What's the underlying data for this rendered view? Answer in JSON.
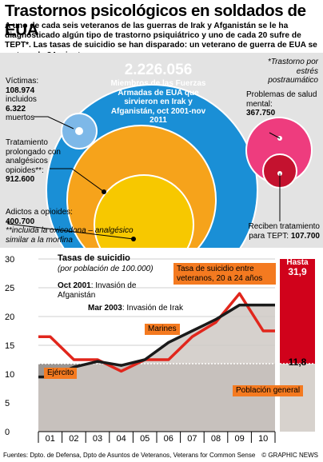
{
  "header": {
    "title": "Trastornos psicológicos en soldados de EUA",
    "subtitle": "A uno de cada seis veteranos de las guerras de Irak y Afganistán se le ha diagnosticado algún tipo de trastorno psiquiátrico y uno de cada 20 sufre de TEPT*. Las tasas de suicidio se han disparado: un veterano de guerra de EUA se mata cada 84 minutos"
  },
  "bubbles": {
    "total_value": "2.226.056",
    "total_desc": "Miembros de las Fuerzas Armadas de EUA que sirvieron en Irak y Afganistán, oct 2001-nov 2011",
    "footnote": "*Trastorno por estrés postraumático",
    "victims": {
      "label": "Víctimas:",
      "value": "108.974",
      "injured_label": "incluidos",
      "dead_value": "6.322",
      "dead_label": "muertos"
    },
    "analgesics": {
      "label": "Tratamiento prolongado con analgésicos opioides**:",
      "value": "912.600"
    },
    "opioid": {
      "label": "Adictos a opioides:",
      "value": "400.700",
      "note": "**incluida la oxicodona – analgésico similar a la morfina"
    },
    "mental": {
      "label": "Problemas de salud mental:",
      "value": "367.750"
    },
    "ptsd": {
      "label": "Reciben tratamiento para TEPT:",
      "value": "107.700"
    }
  },
  "colors": {
    "total": "#1a8fd6",
    "victims": "#7db8e8",
    "analgesics": "#f6a31b",
    "opioid": "#f7c800",
    "mental": "#ee3c7e",
    "ptsd": "#c4122f",
    "marines": "#e1261c",
    "army": "#1a1a1a",
    "population": "#9a9592",
    "callout": "#f47a20"
  },
  "chart_data": {
    "type": "line",
    "title": "Tasas de suicidio",
    "subtitle": "(por población de 100.000)",
    "categories": [
      "01",
      "02",
      "03",
      "04",
      "05",
      "06",
      "07",
      "08",
      "09",
      "10"
    ],
    "ylim": [
      0,
      30
    ],
    "yticks": [
      0,
      5,
      10,
      15,
      20,
      25,
      30
    ],
    "series": [
      {
        "name": "Marines",
        "values": [
          16.5,
          12.5,
          12.5,
          10.5,
          12.5,
          12.5,
          16.5,
          19,
          24,
          17.5
        ]
      },
      {
        "name": "Ejército",
        "values": [
          9.5,
          11.2,
          12.2,
          11.5,
          12.5,
          15.5,
          17.5,
          19.5,
          22,
          22
        ]
      },
      {
        "name": "Población general",
        "values": [
          11.8,
          11.8,
          11.8,
          11.8,
          11.8,
          11.8,
          11.8,
          11.8,
          11.8,
          11.8
        ]
      }
    ],
    "annotations": [
      {
        "year": "Oct 2001",
        "text": ": Invasión de Afganistán"
      },
      {
        "year": "Mar 2003",
        "text": ": Invasión de Irak"
      }
    ],
    "veterans": {
      "label": "Tasa de suicidio entre veteranos, 20 a 24 años",
      "high_label": "Hasta",
      "high_value": "31,9",
      "low_value": "11,8"
    }
  },
  "footer": {
    "sources": "Fuentes: Dpto. de Defensa, Dpto de Asuntos de Veteranos, Veterans for Common Sense",
    "credit": "© GRAPHIC NEWS",
    "watermark": "© GRAPHIC NEWS"
  }
}
